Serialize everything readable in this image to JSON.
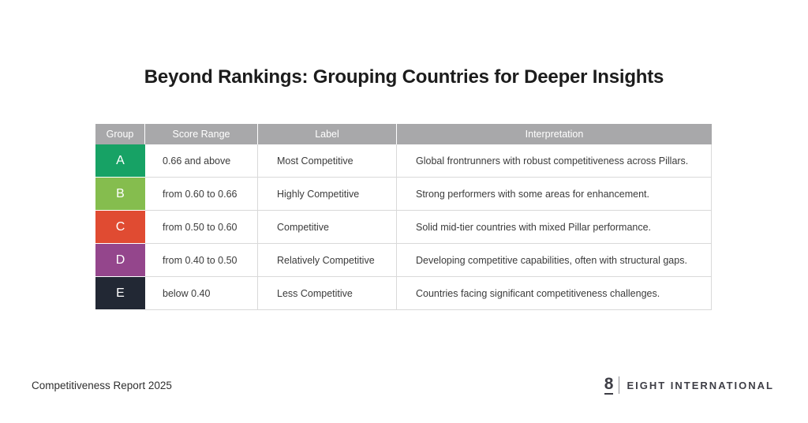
{
  "title": "Beyond Rankings: Grouping Countries for Deeper Insights",
  "table": {
    "header": {
      "bg": "#a8a8aa",
      "text_color": "#ffffff",
      "columns": [
        "Group",
        "Score Range",
        "Label",
        "Interpretation"
      ]
    },
    "rows": [
      {
        "group": "A",
        "color": "#17a265",
        "score_range": "0.66 and above",
        "label": "Most Competitive",
        "interpretation": "Global frontrunners with robust competitiveness across Pillars."
      },
      {
        "group": "B",
        "color": "#85bd4e",
        "score_range": "from 0.60 to 0.66",
        "label": "Highly Competitive",
        "interpretation": "Strong performers with some areas for enhancement."
      },
      {
        "group": "C",
        "color": "#e04b32",
        "score_range": "from 0.50 to 0.60",
        "label": "Competitive",
        "interpretation": "Solid mid-tier countries with mixed Pillar performance."
      },
      {
        "group": "D",
        "color": "#94468c",
        "score_range": "from 0.40 to 0.50",
        "label": "Relatively Competitive",
        "interpretation": "Developing competitive capabilities, often with structural gaps."
      },
      {
        "group": "E",
        "color": "#222834",
        "score_range": "below 0.40",
        "label": "Less Competitive",
        "interpretation": "Countries facing significant competitiveness challenges."
      }
    ]
  },
  "footer": {
    "left_text": "Competitiveness Report 2025",
    "logo": {
      "numeral": "8",
      "name": "EIGHT INTERNATIONAL"
    }
  }
}
